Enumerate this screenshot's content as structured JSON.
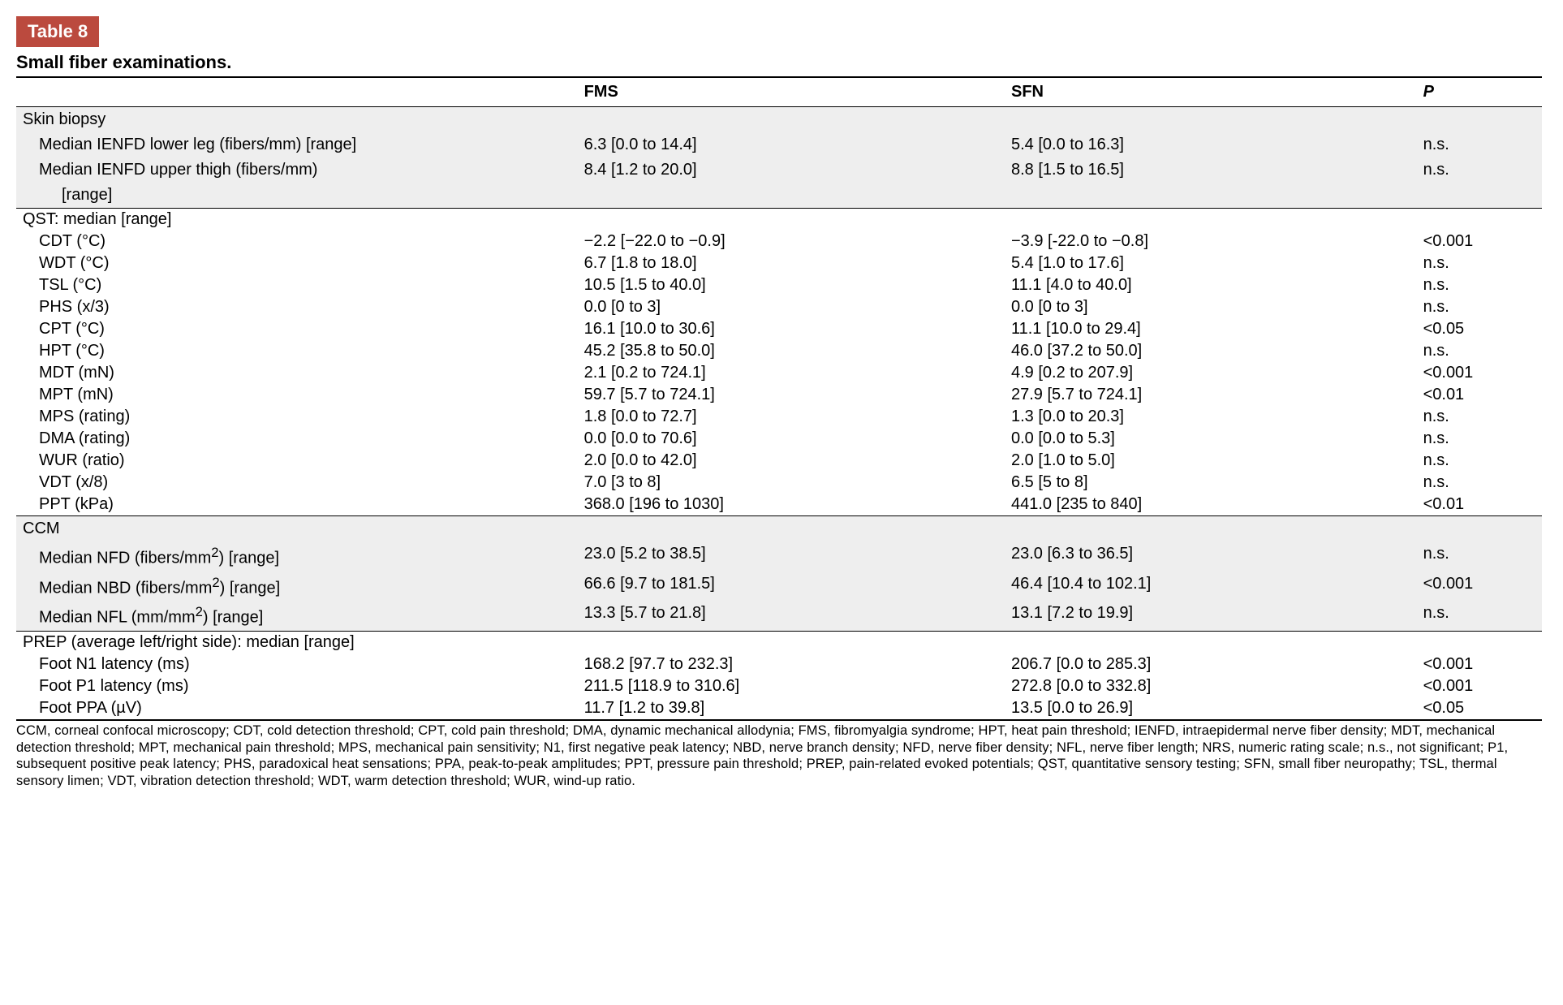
{
  "table_tag": "Table 8",
  "table_title": "Small fiber examinations.",
  "columns": {
    "c1": "",
    "c2": "FMS",
    "c3": "SFN",
    "c4": "P"
  },
  "sections": [
    {
      "id": "skinbiopsy",
      "shaded": true,
      "header": "Skin biopsy",
      "rows": [
        {
          "label": "Median IENFD lower leg (fibers/mm) [range]",
          "fms": "6.3 [0.0 to 14.4]",
          "sfn": "5.4 [0.0 to 16.3]",
          "p": "n.s."
        },
        {
          "label": "Median IENFD upper thigh (fibers/mm)",
          "fms": "8.4 [1.2 to 20.0]",
          "sfn": "8.8 [1.5 to 16.5]",
          "p": "n.s."
        },
        {
          "label": "[range]",
          "indent": 2,
          "fms": "",
          "sfn": "",
          "p": ""
        }
      ]
    },
    {
      "id": "qst",
      "shaded": false,
      "header": "QST: median [range]",
      "rows": [
        {
          "label": "CDT (°C)",
          "fms": "−2.2 [−22.0 to −0.9]",
          "sfn": "−3.9 [-22.0 to −0.8]",
          "p": "<0.001"
        },
        {
          "label": "WDT (°C)",
          "fms": "6.7 [1.8 to 18.0]",
          "sfn": "5.4 [1.0 to 17.6]",
          "p": "n.s."
        },
        {
          "label": "TSL (°C)",
          "fms": "10.5 [1.5 to 40.0]",
          "sfn": "11.1 [4.0 to 40.0]",
          "p": "n.s."
        },
        {
          "label": "PHS (x/3)",
          "fms": "0.0 [0 to 3]",
          "sfn": "0.0 [0 to 3]",
          "p": "n.s."
        },
        {
          "label": "CPT (°C)",
          "fms": "16.1 [10.0 to 30.6]",
          "sfn": "11.1 [10.0 to 29.4]",
          "p": "<0.05"
        },
        {
          "label": "HPT (°C)",
          "fms": "45.2 [35.8 to 50.0]",
          "sfn": "46.0 [37.2 to 50.0]",
          "p": "n.s."
        },
        {
          "label": "MDT (mN)",
          "fms": "2.1 [0.2 to 724.1]",
          "sfn": "4.9 [0.2 to 207.9]",
          "p": "<0.001"
        },
        {
          "label": "MPT (mN)",
          "fms": "59.7 [5.7 to 724.1]",
          "sfn": "27.9 [5.7 to 724.1]",
          "p": "<0.01"
        },
        {
          "label": "MPS (rating)",
          "fms": "1.8 [0.0 to 72.7]",
          "sfn": "1.3 [0.0 to 20.3]",
          "p": "n.s."
        },
        {
          "label": "DMA (rating)",
          "fms": "0.0 [0.0 to 70.6]",
          "sfn": "0.0 [0.0 to 5.3]",
          "p": "n.s."
        },
        {
          "label": "WUR (ratio)",
          "fms": "2.0 [0.0 to 42.0]",
          "sfn": "2.0 [1.0 to 5.0]",
          "p": "n.s."
        },
        {
          "label": "VDT (x/8)",
          "fms": "7.0 [3 to 8]",
          "sfn": "6.5 [5 to 8]",
          "p": "n.s."
        },
        {
          "label": "PPT (kPa)",
          "fms": "368.0 [196 to 1030]",
          "sfn": "441.0 [235 to 840]",
          "p": "<0.01"
        }
      ]
    },
    {
      "id": "ccm",
      "shaded": true,
      "header": "CCM",
      "rows": [
        {
          "label": "Median NFD (fibers/mm²) [range]",
          "sup": true,
          "fms": "23.0 [5.2 to 38.5]",
          "sfn": "23.0 [6.3 to 36.5]",
          "p": "n.s."
        },
        {
          "label": "Median NBD (fibers/mm²) [range]",
          "sup": true,
          "fms": "66.6 [9.7 to 181.5]",
          "sfn": "46.4 [10.4 to 102.1]",
          "p": "<0.001"
        },
        {
          "label": "Median NFL (mm/mm²) [range]",
          "sup": true,
          "fms": "13.3 [5.7 to 21.8]",
          "sfn": "13.1 [7.2 to 19.9]",
          "p": "n.s."
        }
      ]
    },
    {
      "id": "prep",
      "shaded": false,
      "header": "PREP (average left/right side): median [range]",
      "rows": [
        {
          "label": "Foot N1 latency (ms)",
          "fms": "168.2 [97.7 to 232.3]",
          "sfn": "206.7 [0.0 to 285.3]",
          "p": "<0.001"
        },
        {
          "label": "Foot P1 latency (ms)",
          "fms": "211.5 [118.9 to 310.6]",
          "sfn": "272.8 [0.0 to 332.8]",
          "p": "<0.001"
        },
        {
          "label": "Foot PPA (µV)",
          "fms": "11.7 [1.2 to 39.8]",
          "sfn": "13.5 [0.0 to 26.9]",
          "p": "<0.05"
        }
      ]
    }
  ],
  "footnote": "CCM, corneal confocal microscopy; CDT, cold detection threshold; CPT, cold pain threshold; DMA, dynamic mechanical allodynia; FMS, fibromyalgia syndrome; HPT, heat pain threshold; IENFD, intraepidermal nerve fiber density; MDT, mechanical detection threshold; MPT, mechanical pain threshold; MPS, mechanical pain sensitivity; N1, first negative peak latency; NBD, nerve branch density; NFD, nerve fiber density; NFL, nerve fiber length; NRS, numeric rating scale; n.s., not significant; P1, subsequent positive peak latency; PHS, paradoxical heat sensations; PPA, peak-to-peak amplitudes; PPT, pressure pain threshold; PREP, pain-related evoked potentials; QST, quantitative sensory testing; SFN, small fiber neuropathy; TSL, thermal sensory limen; VDT, vibration detection threshold; WDT, warm detection threshold; WUR, wind-up ratio.",
  "style": {
    "tag_bg": "#bb4a3e",
    "tag_fg": "#ffffff",
    "shaded_bg": "#eeeeee",
    "font": "Arial, Helvetica, sans-serif"
  }
}
